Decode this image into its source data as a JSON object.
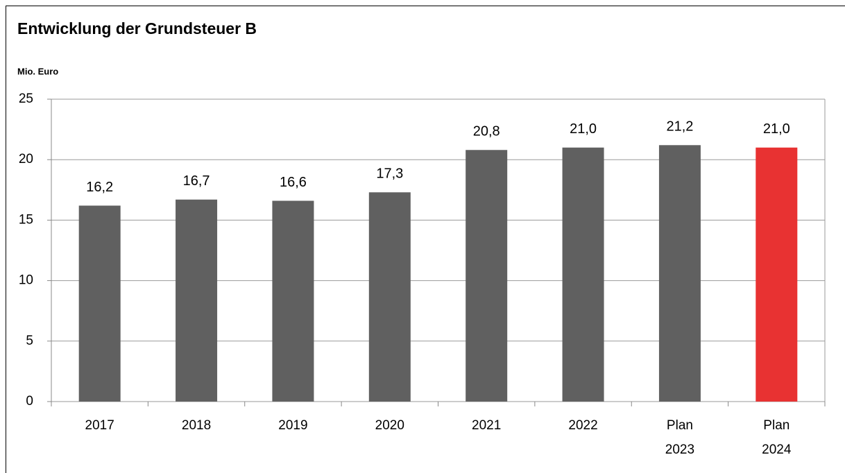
{
  "chart_data": {
    "type": "bar",
    "title": "Entwicklung der Grundsteuer B",
    "y_axis_label": "Mio. Euro",
    "categories": [
      "2017",
      "2018",
      "2019",
      "2020",
      "2021",
      "2022",
      "Plan 2023",
      "Plan 2024"
    ],
    "values": [
      16.2,
      16.7,
      16.6,
      17.3,
      20.8,
      21.0,
      21.2,
      21.0
    ],
    "value_labels": [
      "16,2",
      "16,7",
      "16,6",
      "17,3",
      "20,8",
      "21,0",
      "21,2",
      "21,0"
    ],
    "colors": [
      "#606060",
      "#606060",
      "#606060",
      "#606060",
      "#606060",
      "#606060",
      "#606060",
      "#e83232"
    ],
    "ylim": [
      0,
      25
    ],
    "yticks": [
      0,
      5,
      10,
      15,
      20,
      25
    ],
    "grid": true
  }
}
